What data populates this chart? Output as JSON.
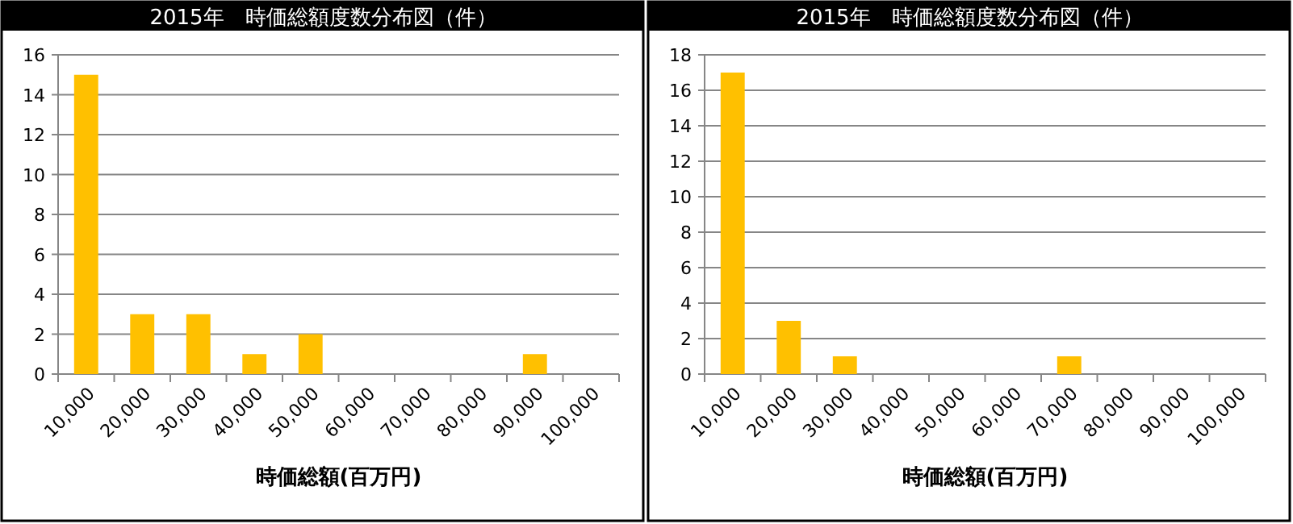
{
  "chart_data": [
    {
      "type": "bar",
      "title": "2015年　時価総額度数分布図（件）",
      "xlabel": "時価総額(百万円)",
      "categories": [
        "10,000",
        "20,000",
        "30,000",
        "40,000",
        "50,000",
        "60,000",
        "70,000",
        "80,000",
        "90,000",
        "100,000"
      ],
      "values": [
        15,
        3,
        3,
        1,
        2,
        0,
        0,
        0,
        1,
        0
      ],
      "color": "#ffc000",
      "ylim": [
        0,
        16
      ],
      "yticks": [
        0,
        2,
        4,
        6,
        8,
        10,
        12,
        14,
        16
      ],
      "grid": "y"
    },
    {
      "type": "bar",
      "title": "2015年　時価総額度数分布図（件）",
      "xlabel": "時価総額(百万円)",
      "categories": [
        "10,000",
        "20,000",
        "30,000",
        "40,000",
        "50,000",
        "60,000",
        "70,000",
        "80,000",
        "90,000",
        "100,000"
      ],
      "values": [
        17,
        3,
        1,
        0,
        0,
        0,
        1,
        0,
        0,
        0
      ],
      "color": "#ffc000",
      "ylim": [
        0,
        18
      ],
      "yticks": [
        0,
        2,
        4,
        6,
        8,
        10,
        12,
        14,
        16,
        18
      ],
      "grid": "y"
    }
  ]
}
